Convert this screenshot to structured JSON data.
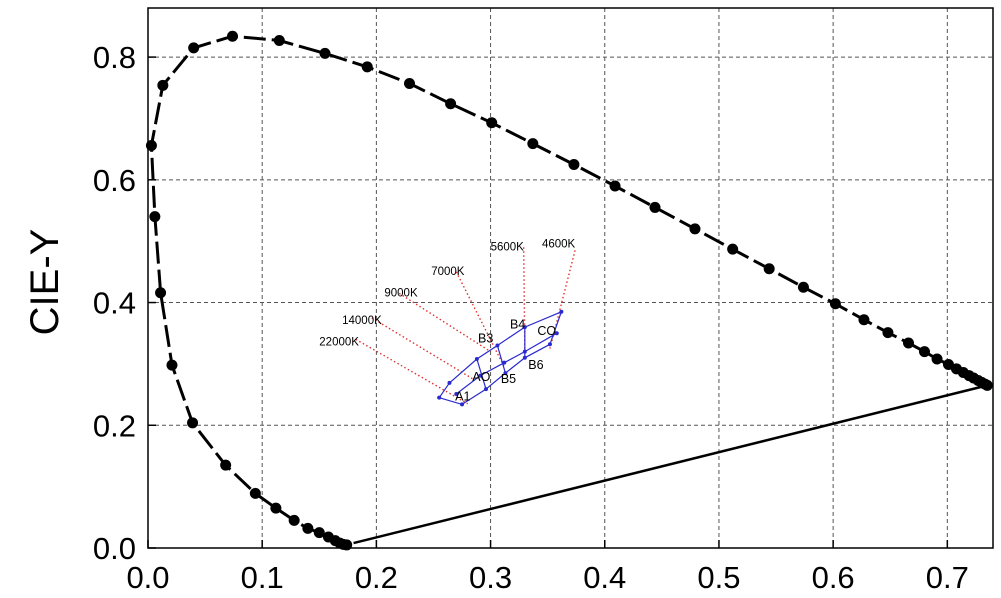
{
  "chart_data": {
    "type": "scatter",
    "title": "",
    "xlabel": "",
    "ylabel": "CIE-Y",
    "xlim": [
      0.0,
      0.74
    ],
    "ylim": [
      0.0,
      0.88
    ],
    "grid": true,
    "x_ticks": [
      {
        "value": 0.0,
        "label": "0.0"
      },
      {
        "value": 0.1,
        "label": "0.1"
      },
      {
        "value": 0.2,
        "label": "0.2"
      },
      {
        "value": 0.3,
        "label": "0.3"
      },
      {
        "value": 0.4,
        "label": "0.4"
      },
      {
        "value": 0.5,
        "label": "0.5"
      },
      {
        "value": 0.6,
        "label": "0.6"
      },
      {
        "value": 0.7,
        "label": "0.7"
      }
    ],
    "y_ticks": [
      {
        "value": 0.0,
        "label": "0.0"
      },
      {
        "value": 0.2,
        "label": "0.2"
      },
      {
        "value": 0.4,
        "label": "0.4"
      },
      {
        "value": 0.6,
        "label": "0.6"
      },
      {
        "value": 0.8,
        "label": "0.8"
      }
    ],
    "spectral_locus": [
      [
        0.174,
        0.005
      ],
      [
        0.171,
        0.006
      ],
      [
        0.168,
        0.008
      ],
      [
        0.164,
        0.012
      ],
      [
        0.158,
        0.018
      ],
      [
        0.15,
        0.025
      ],
      [
        0.14,
        0.032
      ],
      [
        0.128,
        0.045
      ],
      [
        0.112,
        0.065
      ],
      [
        0.094,
        0.089
      ],
      [
        0.068,
        0.135
      ],
      [
        0.039,
        0.204
      ],
      [
        0.021,
        0.298
      ],
      [
        0.011,
        0.416
      ],
      [
        0.006,
        0.54
      ],
      [
        0.003,
        0.656
      ],
      [
        0.013,
        0.754
      ],
      [
        0.04,
        0.815
      ],
      [
        0.074,
        0.834
      ],
      [
        0.115,
        0.827
      ],
      [
        0.155,
        0.806
      ],
      [
        0.192,
        0.784
      ],
      [
        0.229,
        0.757
      ],
      [
        0.265,
        0.724
      ],
      [
        0.301,
        0.693
      ],
      [
        0.337,
        0.659
      ],
      [
        0.373,
        0.625
      ],
      [
        0.409,
        0.59
      ],
      [
        0.444,
        0.555
      ],
      [
        0.479,
        0.52
      ],
      [
        0.512,
        0.487
      ],
      [
        0.544,
        0.455
      ],
      [
        0.574,
        0.425
      ],
      [
        0.602,
        0.398
      ],
      [
        0.627,
        0.372
      ],
      [
        0.648,
        0.351
      ],
      [
        0.666,
        0.334
      ],
      [
        0.68,
        0.32
      ],
      [
        0.691,
        0.308
      ],
      [
        0.701,
        0.299
      ],
      [
        0.708,
        0.292
      ],
      [
        0.714,
        0.286
      ],
      [
        0.719,
        0.281
      ],
      [
        0.723,
        0.277
      ],
      [
        0.727,
        0.273
      ],
      [
        0.73,
        0.27
      ],
      [
        0.733,
        0.267
      ],
      [
        0.735,
        0.265
      ]
    ],
    "purple_line": [
      [
        0.735,
        0.265
      ],
      [
        0.18,
        0.008
      ]
    ],
    "cct_lines": [
      {
        "label": "22000K",
        "from": [
          0.182,
          0.34
        ],
        "to": [
          0.28,
          0.235
        ],
        "label_at": [
          0.15,
          0.33
        ]
      },
      {
        "label": "14000K",
        "from": [
          0.196,
          0.375
        ],
        "to": [
          0.285,
          0.275
        ],
        "label_at": [
          0.17,
          0.365
        ]
      },
      {
        "label": "9000K",
        "from": [
          0.22,
          0.415
        ],
        "to": [
          0.3,
          0.32
        ],
        "label_at": [
          0.207,
          0.41
        ]
      },
      {
        "label": "7000K",
        "from": [
          0.27,
          0.45
        ],
        "to": [
          0.312,
          0.295
        ],
        "label_at": [
          0.248,
          0.445
        ]
      },
      {
        "label": "5600K",
        "from": [
          0.329,
          0.49
        ],
        "to": [
          0.33,
          0.32
        ],
        "label_at": [
          0.3,
          0.485
        ]
      },
      {
        "label": "4600K",
        "from": [
          0.374,
          0.485
        ],
        "to": [
          0.352,
          0.325
        ],
        "label_at": [
          0.345,
          0.49
        ]
      }
    ],
    "bin_grid": {
      "upper": [
        [
          0.264,
          0.269
        ],
        [
          0.288,
          0.308
        ],
        [
          0.306,
          0.33
        ],
        [
          0.33,
          0.36
        ],
        [
          0.362,
          0.385
        ]
      ],
      "middle": [
        [
          0.27,
          0.251
        ],
        [
          0.291,
          0.281
        ],
        [
          0.312,
          0.302
        ],
        [
          0.33,
          0.32
        ],
        [
          0.358,
          0.35
        ]
      ],
      "lower": [
        [
          0.255,
          0.245
        ],
        [
          0.275,
          0.234
        ],
        [
          0.296,
          0.259
        ],
        [
          0.313,
          0.285
        ],
        [
          0.33,
          0.31
        ],
        [
          0.352,
          0.332
        ]
      ]
    },
    "bins": [
      {
        "label": "A1",
        "pos": [
          0.269,
          0.24
        ]
      },
      {
        "label": "AO",
        "pos": [
          0.284,
          0.272
        ]
      },
      {
        "label": "B5",
        "pos": [
          0.309,
          0.269
        ]
      },
      {
        "label": "B3",
        "pos": [
          0.289,
          0.335
        ]
      },
      {
        "label": "B6",
        "pos": [
          0.333,
          0.292
        ]
      },
      {
        "label": "B4",
        "pos": [
          0.317,
          0.358
        ]
      },
      {
        "label": "CO",
        "pos": [
          0.341,
          0.347
        ]
      }
    ],
    "colors": {
      "locus": "#000000",
      "grid": "#555555",
      "cct": "#e03030",
      "bin": "#2a2ad0",
      "text": "#000000"
    }
  }
}
